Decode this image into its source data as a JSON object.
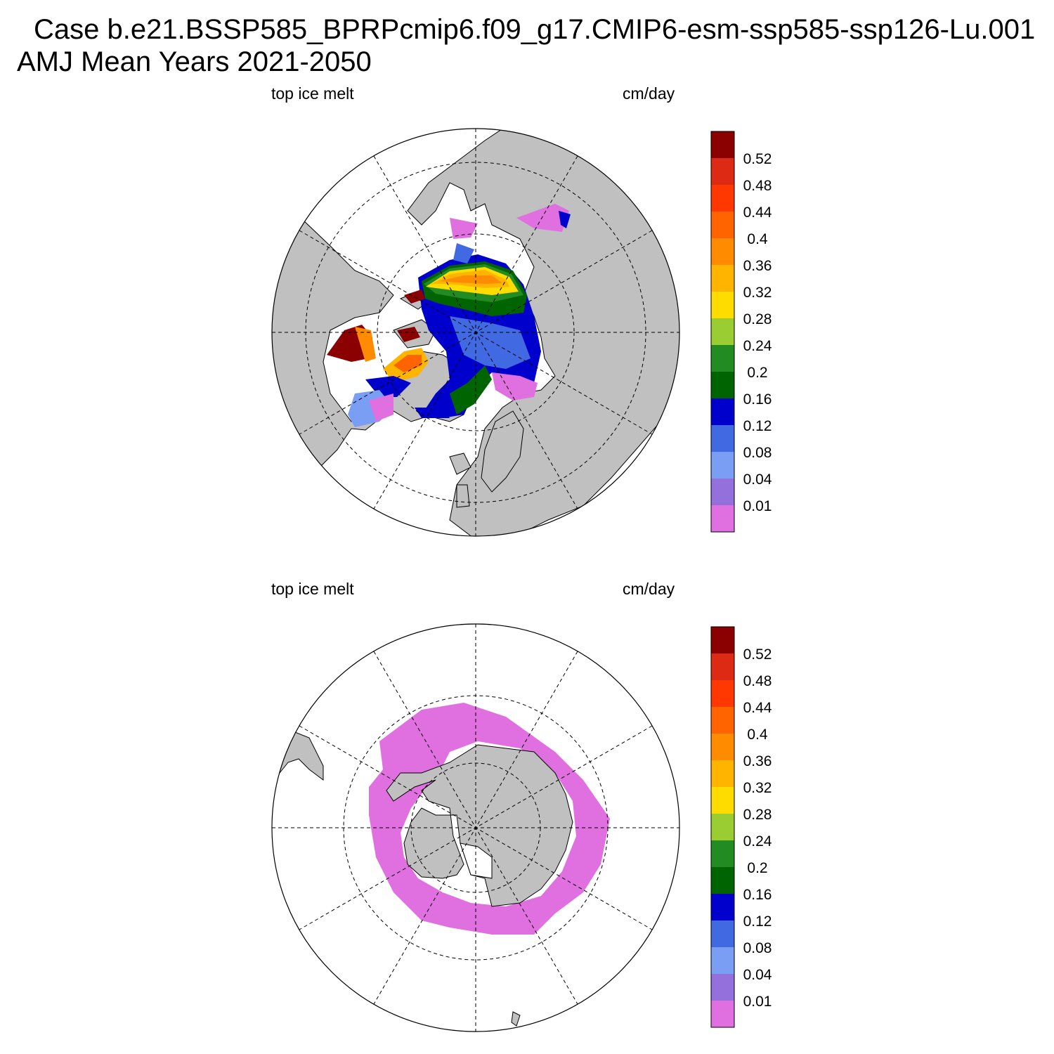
{
  "title": {
    "case_line": "Case b.e21.BSSP585_BPRPcmip6.f09_g17.CMIP6-esm-ssp585-ssp126-Lu.001",
    "period_line": "AMJ Mean   Years 2021-2050"
  },
  "panels": [
    {
      "variable": "top ice melt",
      "units": "cm/day",
      "hemisphere": "north"
    },
    {
      "variable": "top ice melt",
      "units": "cm/day",
      "hemisphere": "south"
    }
  ],
  "colorbar": {
    "labels": [
      "0.52",
      "0.48",
      "0.44",
      "0.4",
      "0.36",
      "0.32",
      "0.28",
      "0.24",
      "0.2",
      "0.16",
      "0.12",
      "0.08",
      "0.04",
      "0.01"
    ],
    "colors": [
      "#8b0000",
      "#dc2a14",
      "#ff3700",
      "#ff6400",
      "#ff8c00",
      "#ffb400",
      "#ffdc00",
      "#9acd32",
      "#228b22",
      "#006400",
      "#0000cd",
      "#4169e1",
      "#7b9ef5",
      "#9370db",
      "#e070e0"
    ]
  },
  "style": {
    "land": "#c0c0c0",
    "ocean": "#ffffff",
    "grid": "#000000"
  }
}
